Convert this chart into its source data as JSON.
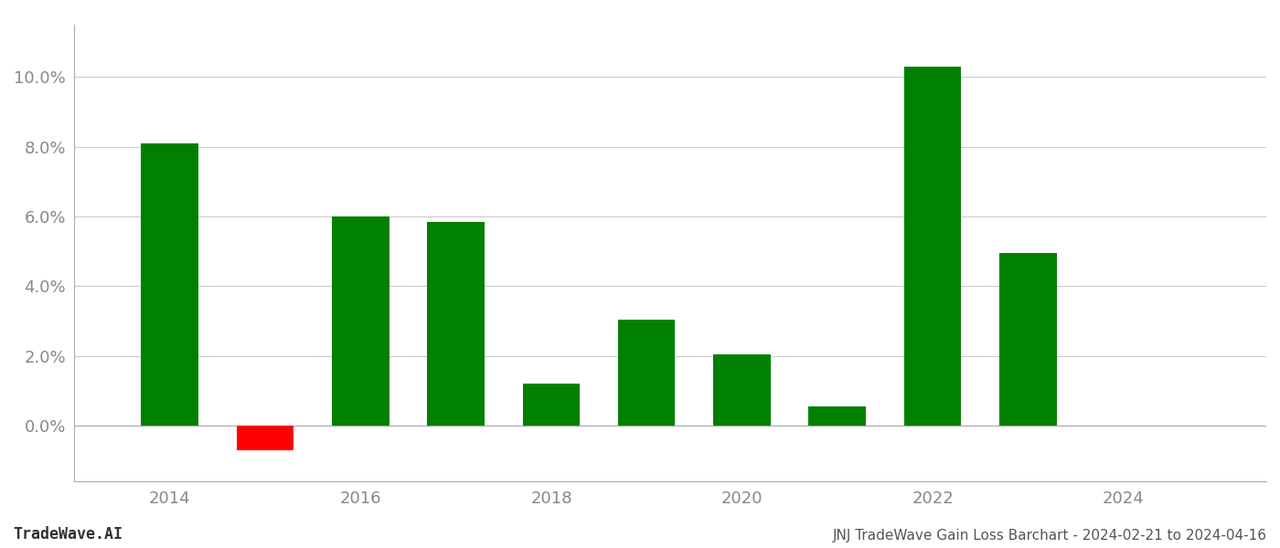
{
  "years": [
    2014,
    2015,
    2016,
    2017,
    2018,
    2019,
    2020,
    2021,
    2022,
    2023
  ],
  "values": [
    0.081,
    -0.007,
    0.06,
    0.0585,
    0.012,
    0.0305,
    0.0205,
    0.0055,
    0.103,
    0.0495
  ],
  "colors": [
    "#008000",
    "#ff0000",
    "#008000",
    "#008000",
    "#008000",
    "#008000",
    "#008000",
    "#008000",
    "#008000",
    "#008000"
  ],
  "title": "JNJ TradeWave Gain Loss Barchart - 2024-02-21 to 2024-04-16",
  "watermark": "TradeWave.AI",
  "xlim": [
    2013.0,
    2025.5
  ],
  "ylim": [
    -0.016,
    0.115
  ],
  "yticks": [
    0.0,
    0.02,
    0.04,
    0.06,
    0.08,
    0.1
  ],
  "xticks": [
    2014,
    2016,
    2018,
    2020,
    2022,
    2024
  ],
  "background_color": "#ffffff",
  "grid_color": "#cccccc",
  "bar_width": 0.6
}
